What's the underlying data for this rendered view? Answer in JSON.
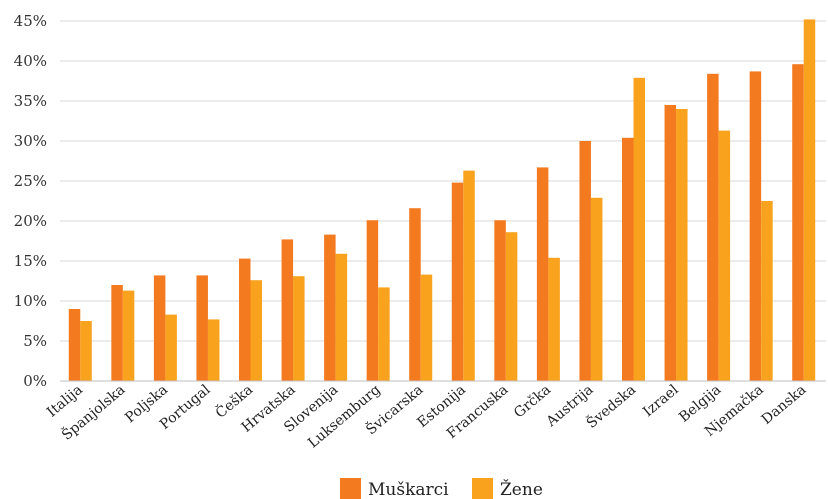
{
  "chart_data": {
    "type": "bar",
    "categories": [
      "Italija",
      "Španjolska",
      "Poljska",
      "Portugal",
      "Češka",
      "Hrvatska",
      "Slovenija",
      "Luksemburg",
      "Švicarska",
      "Estonija",
      "Francuska",
      "Grčka",
      "Austrija",
      "Švedska",
      "Izrael",
      "Belgija",
      "Njemačka",
      "Danska"
    ],
    "series": [
      {
        "name": "Muškarci",
        "color": "#f47a20",
        "values": [
          9.0,
          12.0,
          13.2,
          13.2,
          15.3,
          17.7,
          18.3,
          20.1,
          21.6,
          24.8,
          20.1,
          26.7,
          30.0,
          30.4,
          34.5,
          38.4,
          38.7,
          39.6
        ]
      },
      {
        "name": "Žene",
        "color": "#f9a21e",
        "values": [
          7.5,
          11.3,
          8.3,
          7.7,
          12.6,
          13.1,
          15.9,
          11.7,
          13.3,
          26.3,
          18.6,
          15.4,
          22.9,
          37.9,
          34.0,
          31.3,
          22.5,
          45.2
        ]
      }
    ],
    "ylim": [
      0,
      45
    ],
    "yticks": [
      0,
      5,
      10,
      15,
      20,
      25,
      30,
      35,
      40,
      45
    ],
    "ytick_labels": [
      "0%",
      "5%",
      "10%",
      "15%",
      "20%",
      "25%",
      "30%",
      "35%",
      "40%",
      "45%"
    ],
    "grid": true,
    "legend": "bottom-center",
    "title": "",
    "xlabel": "",
    "ylabel": ""
  }
}
